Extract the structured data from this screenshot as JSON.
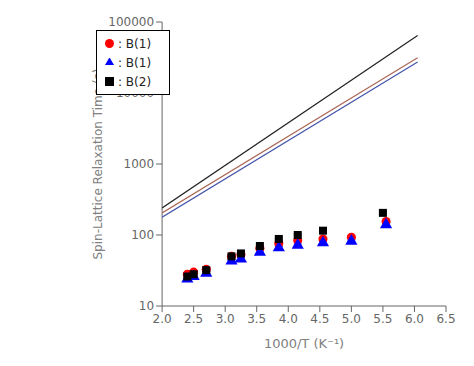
{
  "chart_data": {
    "type": "scatter",
    "title": "",
    "xlabel": "1000/T (K⁻¹)",
    "ylabel": "Spin-Lattice Relaxation Time (s)",
    "log": "y",
    "legend": "upper left",
    "grid": false,
    "xlim": [
      2.0,
      6.5
    ],
    "xticks": [
      {
        "value": 2.0,
        "label": "2.0"
      },
      {
        "value": 2.5,
        "label": "2.5"
      },
      {
        "value": 3.0,
        "label": "3.0"
      },
      {
        "value": 3.5,
        "label": "3.5"
      },
      {
        "value": 4.0,
        "label": "4.0"
      },
      {
        "value": 4.5,
        "label": "4.5"
      },
      {
        "value": 5.0,
        "label": "5.0"
      },
      {
        "value": 5.5,
        "label": "5.5"
      },
      {
        "value": 6.0,
        "label": "6.0"
      },
      {
        "value": 6.5,
        "label": "6.5"
      }
    ],
    "ylim": [
      10,
      100000
    ],
    "yticks": [
      10,
      100,
      1000,
      10000,
      100000
    ],
    "series": [
      {
        "type": "line",
        "line_style": "solid",
        "color": "#222222",
        "x": [
          2.0,
          6.05
        ],
        "values": [
          239.883,
          64565.5
        ]
      },
      {
        "type": "line",
        "line_style": "solid",
        "color": "#aa6655",
        "x": [
          2.0,
          6.05
        ],
        "values": [
          204.174,
          31405.1
        ]
      },
      {
        "type": "line",
        "line_style": "solid",
        "color": "#4455aa",
        "x": [
          2.0,
          6.05
        ],
        "values": [
          177.828,
          27352.7
        ]
      },
      {
        "name": ": B(1)",
        "type": "scatter",
        "marker": "circle",
        "color": "red",
        "x": [
          2.4,
          2.5,
          2.7,
          3.1,
          3.25,
          3.55,
          3.85,
          4.15,
          4.55,
          5.0,
          5.55
        ],
        "values": [
          28,
          30,
          33,
          50,
          53,
          65,
          76,
          84,
          88,
          93,
          155
        ],
        "yerr": [
          1.5,
          1.5,
          1.5,
          2,
          2,
          2.5,
          3,
          3,
          3,
          3,
          5
        ]
      },
      {
        "name": ": B(1)",
        "type": "scatter",
        "marker": "triangle",
        "color": "blue",
        "x": [
          2.4,
          2.5,
          2.7,
          3.1,
          3.25,
          3.55,
          3.85,
          4.15,
          4.55,
          5.0,
          5.55
        ],
        "values": [
          24,
          26,
          29,
          43,
          46,
          57,
          66,
          72,
          78,
          82,
          140
        ],
        "yerr": [
          1.5,
          1.5,
          1.5,
          2,
          2,
          2.5,
          2.5,
          3,
          3,
          3,
          5
        ]
      },
      {
        "name": ": B(2)",
        "type": "scatter",
        "marker": "square",
        "color": "black",
        "x": [
          2.4,
          2.5,
          2.7,
          3.1,
          3.25,
          3.55,
          3.85,
          4.15,
          4.55,
          5.5
        ],
        "values": [
          26,
          28,
          32,
          50,
          55,
          70,
          88,
          100,
          115,
          205
        ],
        "yerr": [
          1.5,
          1.5,
          1.5,
          2,
          2,
          2.5,
          3,
          3.5,
          4,
          8
        ]
      }
    ]
  }
}
